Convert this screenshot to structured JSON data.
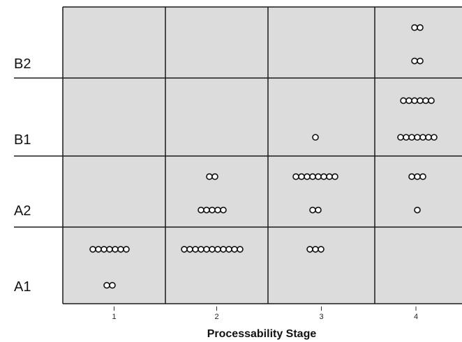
{
  "chart_data": {
    "type": "scatter",
    "title": "",
    "xlabel": "Processability Stage",
    "ylabel": "",
    "x_categories": [
      "1",
      "2",
      "3",
      "4"
    ],
    "y_categories": [
      "A1",
      "A2",
      "B1",
      "B2"
    ],
    "grid": true,
    "background_color": "#dcdcdc",
    "marker": "open-circle",
    "series": [
      {
        "points": [
          {
            "x": "1",
            "y": "A1",
            "sub_row": "lower",
            "count": 2
          },
          {
            "x": "1",
            "y": "A1",
            "sub_row": "upper",
            "count": 7
          },
          {
            "x": "2",
            "y": "A1",
            "sub_row": "upper",
            "count": 11
          },
          {
            "x": "3",
            "y": "A1",
            "sub_row": "upper",
            "count": 3
          },
          {
            "x": "2",
            "y": "A2",
            "sub_row": "lower",
            "count": 5
          },
          {
            "x": "2",
            "y": "A2",
            "sub_row": "upper",
            "count": 2
          },
          {
            "x": "3",
            "y": "A2",
            "sub_row": "lower",
            "count": 2
          },
          {
            "x": "3",
            "y": "A2",
            "sub_row": "upper",
            "count": 8
          },
          {
            "x": "4",
            "y": "A2",
            "sub_row": "lower",
            "count": 1
          },
          {
            "x": "4",
            "y": "A2",
            "sub_row": "upper",
            "count": 3
          },
          {
            "x": "3",
            "y": "B1",
            "sub_row": "lower",
            "count": 1
          },
          {
            "x": "4",
            "y": "B1",
            "sub_row": "lower",
            "count": 7
          },
          {
            "x": "4",
            "y": "B1",
            "sub_row": "upper",
            "count": 6
          },
          {
            "x": "4",
            "y": "B2",
            "sub_row": "lower",
            "count": 2
          },
          {
            "x": "4",
            "y": "B2",
            "sub_row": "upper",
            "count": 2
          }
        ]
      }
    ]
  }
}
